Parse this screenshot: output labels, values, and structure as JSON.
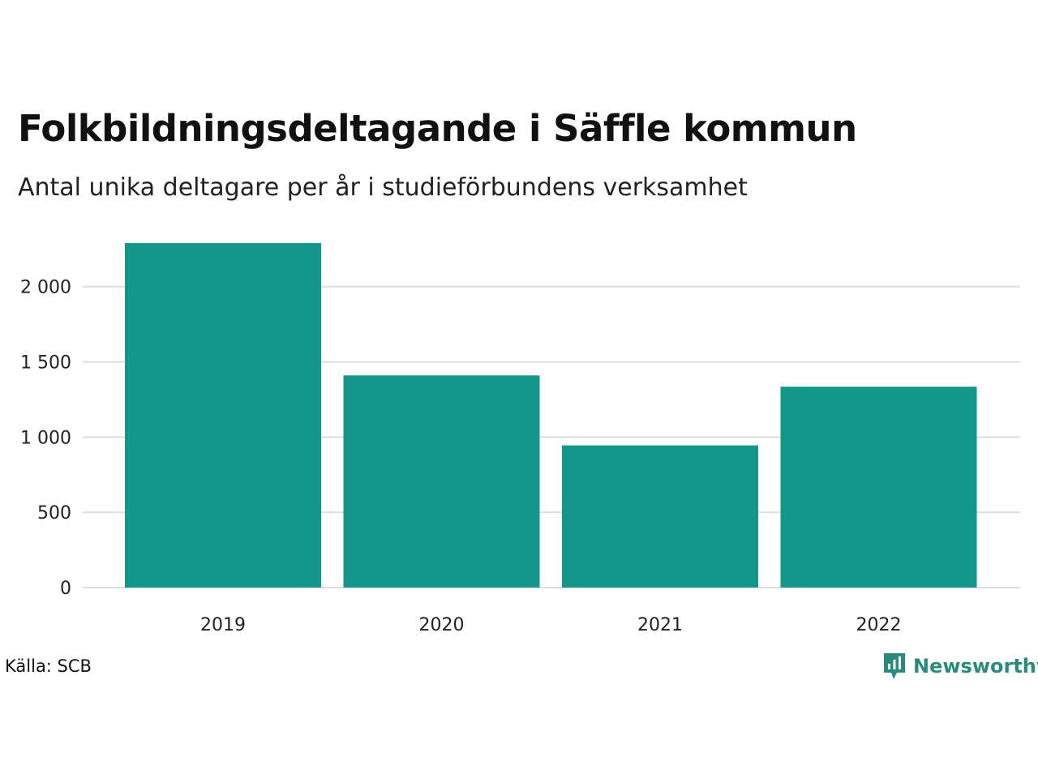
{
  "header": {
    "title": "Folkbildningsdeltagande i Säffle kommun",
    "subtitle": "Antal unika deltagare per år i studieförbundens verksamhet"
  },
  "footer": {
    "source": "Källa: SCB",
    "brand": "Newsworthy",
    "brand_icon": "bar-chart-speech-bubble-icon"
  },
  "colors": {
    "bar": "#14968a",
    "gridline": "#dddddd",
    "brand": "#2a8a7d"
  },
  "chart_data": {
    "type": "bar",
    "title": "Folkbildningsdeltagande i Säffle kommun",
    "subtitle": "Antal unika deltagare per år i studieförbundens verksamhet",
    "categories": [
      "2019",
      "2020",
      "2021",
      "2022"
    ],
    "values": [
      2290,
      1410,
      945,
      1335
    ],
    "yticks": [
      0,
      500,
      1000,
      1500,
      2000
    ],
    "ytick_labels": [
      "0",
      "500",
      "1 000",
      "1 500",
      "2 000"
    ],
    "ylim": [
      0,
      2300
    ],
    "grid": "horizontal",
    "legend": "none",
    "xlabel": "",
    "ylabel": ""
  }
}
